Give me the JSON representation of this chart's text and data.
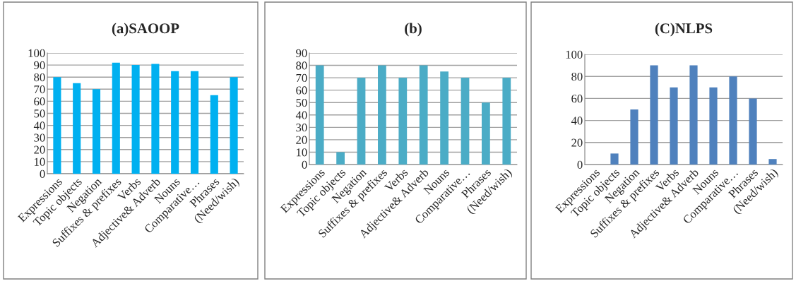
{
  "chart_data": [
    {
      "type": "bar",
      "title": "(a)SAOOP",
      "categories": [
        "Expressions",
        "Topic objects",
        "Negation",
        "Suffixes & prefixes",
        "Verbs",
        "Adjective& Adverb",
        "Nouns",
        "Comparative…",
        "Phrases",
        "(Need/wish)"
      ],
      "values": [
        80,
        75,
        70,
        92,
        90,
        91,
        85,
        85,
        65,
        80
      ],
      "color": "#00b0f0",
      "ylim": [
        0,
        100
      ],
      "yticks": [
        0,
        10,
        20,
        30,
        40,
        50,
        60,
        70,
        80,
        90,
        100
      ],
      "grid": "y",
      "legend": false
    },
    {
      "type": "bar",
      "title": "(b)",
      "categories": [
        "Expressions",
        "Topic objects",
        "Negation",
        "Suffixes & prefixes",
        "Verbs",
        "Adjective& Adverb",
        "Nouns",
        "Comparative…",
        "Phrases",
        "(Need/wish)"
      ],
      "values": [
        80,
        10,
        70,
        80,
        70,
        80,
        75,
        70,
        50,
        70
      ],
      "color": "#4bacc6",
      "ylim": [
        0,
        90
      ],
      "yticks": [
        0,
        10,
        20,
        30,
        40,
        50,
        60,
        70,
        80,
        90
      ],
      "grid": "y",
      "legend": false
    },
    {
      "type": "bar",
      "title": "(C)NLPS",
      "categories": [
        "Expressions",
        "Topic objects",
        "Negation",
        "Suffixes & prefixes",
        "Verbs",
        "Adjective& Adverb",
        "Nouns",
        "Comparative…",
        "Phrases",
        "(Need/wish)"
      ],
      "values": [
        null,
        10,
        50,
        90,
        70,
        90,
        70,
        80,
        60,
        5
      ],
      "color": "#4f81bd",
      "ylim": [
        0,
        100
      ],
      "yticks": [
        0,
        20,
        40,
        60,
        80,
        100
      ],
      "grid": "y",
      "legend": false
    }
  ]
}
